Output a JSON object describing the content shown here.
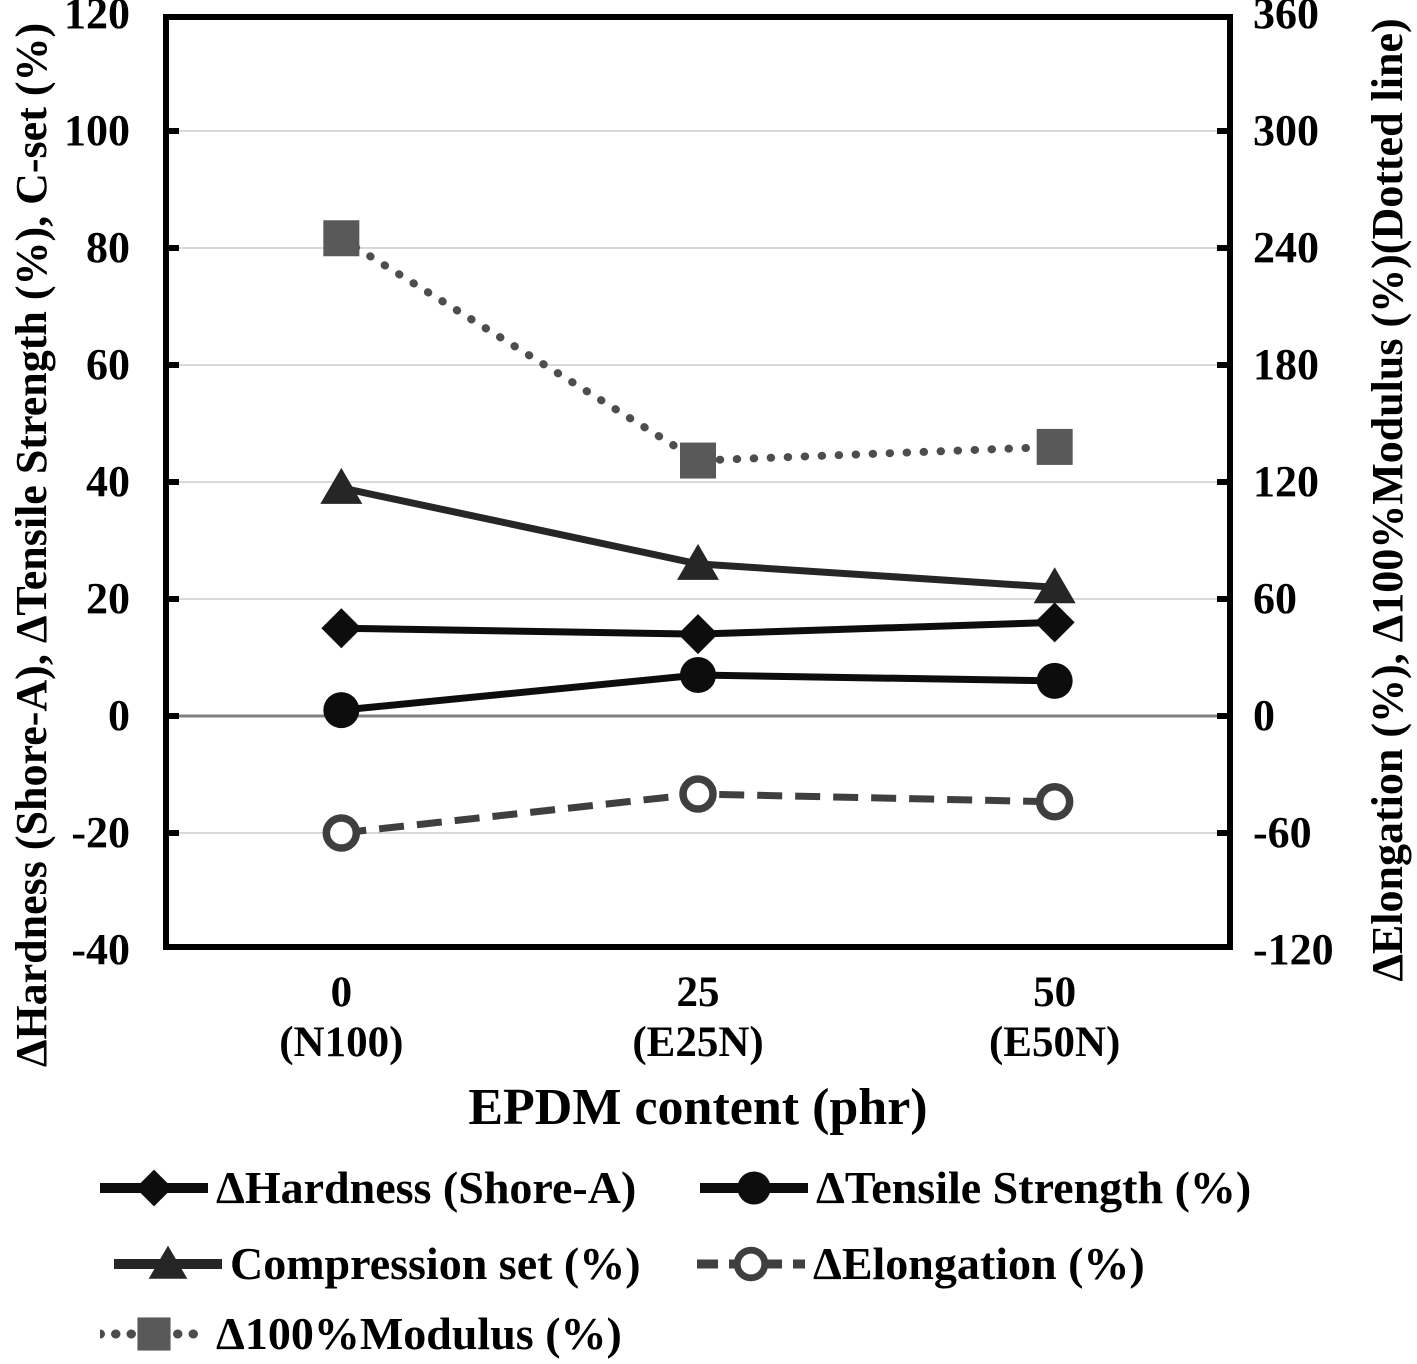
{
  "chart_data": {
    "type": "line",
    "title": "",
    "xlabel": "EPDM content (phr)",
    "x_categories": [
      "0",
      "25",
      "50"
    ],
    "x_sublabels": [
      "(N100)",
      "(E25N)",
      "(E50N)"
    ],
    "axes": {
      "left": {
        "label": "ΔHardness (Shore-A), ΔTensile Strength (%), C-set (%)",
        "min": -40,
        "max": 120,
        "ticks": [
          120,
          100,
          80,
          60,
          40,
          20,
          0,
          -20,
          -40
        ]
      },
      "right": {
        "label": "ΔElongation (%), Δ100%Modulus (%)(Dotted line)",
        "min": -120,
        "max": 360,
        "ticks": [
          360,
          300,
          240,
          180,
          120,
          60,
          0,
          -60,
          -120
        ]
      }
    },
    "grid": {
      "color": "#d9d9d9",
      "zero_line_color": "#7f7f7f",
      "frame_color": "#000000",
      "tick_color": "#000000"
    },
    "legend_position": "bottom",
    "series": [
      {
        "name": "ΔHardness (Shore-A)",
        "axis": "left",
        "values": [
          15,
          14,
          16
        ],
        "marker": "diamond",
        "line": "solid",
        "color": "#0d0d0d",
        "line_color": "#0d0d0d"
      },
      {
        "name": "ΔTensile Strength (%)",
        "axis": "left",
        "values": [
          1,
          7,
          6
        ],
        "marker": "circle-filled",
        "line": "solid",
        "color": "#0d0d0d",
        "line_color": "#0d0d0d"
      },
      {
        "name": "Compression set (%)",
        "axis": "left",
        "values": [
          39,
          26,
          22
        ],
        "marker": "triangle-filled",
        "line": "solid",
        "color": "#262626",
        "line_color": "#262626"
      },
      {
        "name": "ΔElongation (%)",
        "axis": "right",
        "values": [
          -60,
          -40,
          -44
        ],
        "marker": "circle-open",
        "line": "dashed",
        "color": "#3f3f3f",
        "line_color": "#3f3f3f"
      },
      {
        "name": "Δ100%Modulus (%)",
        "axis": "right",
        "values": [
          245,
          131,
          138
        ],
        "marker": "square-filled",
        "line": "dotted",
        "color": "#595959",
        "line_color": "#4d4d4d"
      }
    ]
  }
}
